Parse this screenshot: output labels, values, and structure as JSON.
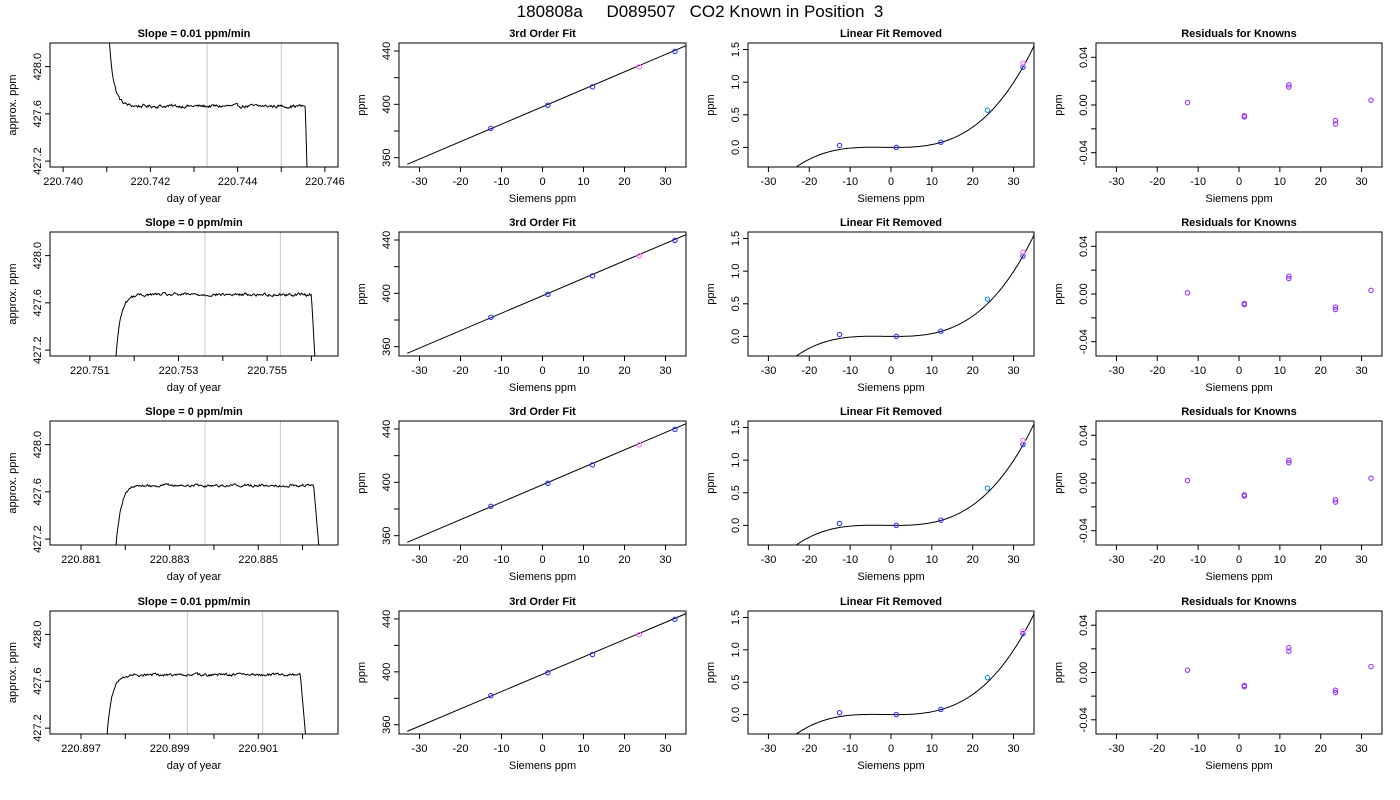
{
  "page": {
    "title": "180808a     D089507   CO2 Known in Position  3"
  },
  "chart_data": [
    {
      "type": "line",
      "row": 0,
      "panel": "trace",
      "title": "Slope =  0.01  ppm/min",
      "xlabel": "day of year",
      "ylabel": "approx. ppm",
      "xlim": [
        220.7397,
        220.7463
      ],
      "ylim": [
        427.15,
        428.2
      ],
      "xticks": [
        220.74,
        220.742,
        220.744,
        220.746
      ],
      "xtick_labels": [
        "220.740",
        "220.742",
        "220.744",
        "220.746"
      ],
      "xminor_ticks": [
        220.741,
        220.743,
        220.745
      ],
      "yticks": [
        427.2,
        427.6,
        428.0
      ],
      "ytick_labels": [
        "427.2",
        "427.6",
        "428.0"
      ],
      "vlines": [
        220.7433,
        220.745
      ],
      "trace": {
        "x_start": 220.741,
        "x_end": 220.7456,
        "level": 427.665,
        "noise": 0.014,
        "rise": "decay",
        "rise_from": 428.6,
        "rise_tau": 0.00011,
        "fall_start": 220.74555,
        "drop_to": 427.0
      }
    },
    {
      "type": "scatter",
      "row": 0,
      "panel": "fit",
      "title": "3rd Order Fit",
      "xlabel": "Siemens ppm",
      "ylabel": "ppm",
      "xlim": [
        -35,
        35
      ],
      "ylim": [
        353,
        446
      ],
      "xticks": [
        -30,
        -20,
        -10,
        0,
        10,
        20,
        30
      ],
      "xtick_labels": [
        "-30",
        "-20",
        "-10",
        "0",
        "10",
        "20",
        "30"
      ],
      "yticks": [
        360,
        400,
        440
      ],
      "ytick_labels": [
        "360",
        "400",
        "440"
      ],
      "yminor_ticks": [
        380,
        420
      ],
      "fit_line": [
        [
          -33,
          355
        ],
        [
          35,
          444
        ]
      ],
      "points": [
        {
          "x": -12.6,
          "y": 382.0
        },
        {
          "x": 1.3,
          "y": 399.3
        },
        {
          "x": 12.2,
          "y": 413.1
        },
        {
          "x": 23.6,
          "y": 428.1,
          "color": "#ff66ff"
        },
        {
          "x": 32.3,
          "y": 439.7
        }
      ]
    },
    {
      "type": "scatter",
      "row": 0,
      "panel": "linear",
      "title": "Linear Fit Removed",
      "xlabel": "Siemens ppm",
      "ylabel": "ppm",
      "xlim": [
        -35,
        35
      ],
      "ylim": [
        -0.3,
        1.6
      ],
      "xticks": [
        -30,
        -20,
        -10,
        0,
        10,
        20,
        30
      ],
      "xtick_labels": [
        "-30",
        "-20",
        "-10",
        "0",
        "10",
        "20",
        "30"
      ],
      "yticks": [
        0,
        0.5,
        1.0,
        1.5
      ],
      "ytick_labels": [
        "0.0",
        "0.5",
        "1.0",
        "1.5"
      ],
      "curve_x": [
        -33,
        35
      ],
      "points": [
        {
          "x": -12.6,
          "y": 0.03
        },
        {
          "x": 1.3,
          "y": 0.0
        },
        {
          "x": 12.2,
          "y": 0.08
        },
        {
          "x": 23.6,
          "y": 0.57,
          "color": "#1e90ff"
        },
        {
          "x": 32.3,
          "y": 1.23
        },
        {
          "x": 32.3,
          "y": 1.29,
          "color": "#ff66ff"
        }
      ]
    },
    {
      "type": "scatter",
      "row": 0,
      "panel": "resid",
      "title": "Residuals for Knowns",
      "xlabel": "Siemens ppm",
      "ylabel": "ppm",
      "xlim": [
        -35,
        35
      ],
      "ylim": [
        -0.052,
        0.052
      ],
      "xticks": [
        -30,
        -20,
        -10,
        0,
        10,
        20,
        30
      ],
      "xtick_labels": [
        "-30",
        "-20",
        "-10",
        "0",
        "10",
        "20",
        "30"
      ],
      "yticks": [
        -0.04,
        0.0,
        0.04
      ],
      "ytick_labels": [
        "-0.04",
        "0.00",
        "0.04"
      ],
      "yminor_ticks": [
        -0.02,
        0.02
      ],
      "points": [
        {
          "x": -12.6,
          "y": 0.002
        },
        {
          "x": 1.3,
          "y": -0.009
        },
        {
          "x": 1.3,
          "y": -0.01
        },
        {
          "x": 12.2,
          "y": 0.017
        },
        {
          "x": 12.2,
          "y": 0.015
        },
        {
          "x": 23.6,
          "y": -0.013
        },
        {
          "x": 23.6,
          "y": -0.016
        },
        {
          "x": 32.3,
          "y": 0.004
        }
      ]
    },
    {
      "type": "line",
      "row": 1,
      "panel": "trace",
      "title": "Slope =  0  ppm/min",
      "xlabel": "day of year",
      "ylabel": "approx. ppm",
      "xlim": [
        220.7501,
        220.7566
      ],
      "ylim": [
        427.15,
        428.2
      ],
      "xticks": [
        220.751,
        220.753,
        220.755
      ],
      "xtick_labels": [
        "220.751",
        "220.753",
        "220.755"
      ],
      "xminor_ticks": [
        220.752,
        220.754,
        220.756
      ],
      "yticks": [
        427.2,
        427.6,
        428.0
      ],
      "ytick_labels": [
        "427.2",
        "427.6",
        "428.0"
      ],
      "vlines": [
        220.7536,
        220.7553
      ],
      "trace": {
        "x_start": 220.7515,
        "x_end": 220.7561,
        "level": 427.67,
        "noise": 0.013,
        "rise": "grow",
        "rise_from": 426.5,
        "rise_tau": 0.00011,
        "fall_start": 220.756,
        "drop_to": 427.0
      }
    },
    {
      "type": "scatter",
      "row": 1,
      "panel": "fit",
      "title": "3rd Order Fit",
      "xlabel": "Siemens ppm",
      "ylabel": "ppm",
      "xlim": [
        -35,
        35
      ],
      "ylim": [
        353,
        446
      ],
      "xticks": [
        -30,
        -20,
        -10,
        0,
        10,
        20,
        30
      ],
      "xtick_labels": [
        "-30",
        "-20",
        "-10",
        "0",
        "10",
        "20",
        "30"
      ],
      "yticks": [
        360,
        400,
        440
      ],
      "ytick_labels": [
        "360",
        "400",
        "440"
      ],
      "yminor_ticks": [
        380,
        420
      ],
      "fit_line": [
        [
          -33,
          355
        ],
        [
          35,
          444
        ]
      ],
      "points": [
        {
          "x": -12.6,
          "y": 382.0
        },
        {
          "x": 1.3,
          "y": 399.3
        },
        {
          "x": 12.2,
          "y": 413.1
        },
        {
          "x": 23.6,
          "y": 428.1,
          "color": "#ff66ff"
        },
        {
          "x": 32.3,
          "y": 439.7
        }
      ]
    },
    {
      "type": "scatter",
      "row": 1,
      "panel": "linear",
      "title": "Linear Fit Removed",
      "xlabel": "Siemens ppm",
      "ylabel": "ppm",
      "xlim": [
        -35,
        35
      ],
      "ylim": [
        -0.3,
        1.6
      ],
      "xticks": [
        -30,
        -20,
        -10,
        0,
        10,
        20,
        30
      ],
      "xtick_labels": [
        "-30",
        "-20",
        "-10",
        "0",
        "10",
        "20",
        "30"
      ],
      "yticks": [
        0,
        0.5,
        1.0,
        1.5
      ],
      "ytick_labels": [
        "0.0",
        "0.5",
        "1.0",
        "1.5"
      ],
      "curve_x": [
        -33,
        35
      ],
      "points": [
        {
          "x": -12.6,
          "y": 0.03
        },
        {
          "x": 1.3,
          "y": 0.0
        },
        {
          "x": 12.2,
          "y": 0.08
        },
        {
          "x": 23.6,
          "y": 0.57,
          "color": "#1e90ff"
        },
        {
          "x": 32.3,
          "y": 1.23
        },
        {
          "x": 32.3,
          "y": 1.29,
          "color": "#ff66ff"
        }
      ]
    },
    {
      "type": "scatter",
      "row": 1,
      "panel": "resid",
      "title": "Residuals for Knowns",
      "xlabel": "Siemens ppm",
      "ylabel": "ppm",
      "xlim": [
        -35,
        35
      ],
      "ylim": [
        -0.052,
        0.052
      ],
      "xticks": [
        -30,
        -20,
        -10,
        0,
        10,
        20,
        30
      ],
      "xtick_labels": [
        "-30",
        "-20",
        "-10",
        "0",
        "10",
        "20",
        "30"
      ],
      "yticks": [
        -0.04,
        0.0,
        0.04
      ],
      "ytick_labels": [
        "-0.04",
        "0.00",
        "0.04"
      ],
      "yminor_ticks": [
        -0.02,
        0.02
      ],
      "points": [
        {
          "x": -12.6,
          "y": 0.001
        },
        {
          "x": 1.3,
          "y": -0.008
        },
        {
          "x": 1.3,
          "y": -0.009
        },
        {
          "x": 12.2,
          "y": 0.015
        },
        {
          "x": 12.2,
          "y": 0.013
        },
        {
          "x": 23.6,
          "y": -0.011
        },
        {
          "x": 23.6,
          "y": -0.013
        },
        {
          "x": 32.3,
          "y": 0.003
        }
      ]
    },
    {
      "type": "line",
      "row": 2,
      "panel": "trace",
      "title": "Slope =  0  ppm/min",
      "xlabel": "day of year",
      "ylabel": "approx. ppm",
      "xlim": [
        220.8803,
        220.8868
      ],
      "ylim": [
        427.15,
        428.2
      ],
      "xticks": [
        220.881,
        220.883,
        220.885
      ],
      "xtick_labels": [
        "220.881",
        "220.883",
        "220.885"
      ],
      "xminor_ticks": [
        220.882,
        220.884,
        220.886
      ],
      "yticks": [
        427.2,
        427.6,
        428.0
      ],
      "ytick_labels": [
        "427.2",
        "427.6",
        "428.0"
      ],
      "vlines": [
        220.8838,
        220.8855
      ],
      "trace": {
        "x_start": 220.8817,
        "x_end": 220.8864,
        "level": 427.655,
        "noise": 0.012,
        "rise": "grow",
        "rise_from": 426.5,
        "rise_tau": 0.00011,
        "fall_start": 220.88625,
        "drop_to": 427.0
      }
    },
    {
      "type": "scatter",
      "row": 2,
      "panel": "fit",
      "title": "3rd Order Fit",
      "xlabel": "Siemens ppm",
      "ylabel": "ppm",
      "xlim": [
        -35,
        35
      ],
      "ylim": [
        353,
        446
      ],
      "xticks": [
        -30,
        -20,
        -10,
        0,
        10,
        20,
        30
      ],
      "xtick_labels": [
        "-30",
        "-20",
        "-10",
        "0",
        "10",
        "20",
        "30"
      ],
      "yticks": [
        360,
        400,
        440
      ],
      "ytick_labels": [
        "360",
        "400",
        "440"
      ],
      "yminor_ticks": [
        380,
        420
      ],
      "fit_line": [
        [
          -33,
          355
        ],
        [
          35,
          444
        ]
      ],
      "points": [
        {
          "x": -12.6,
          "y": 382.0
        },
        {
          "x": 1.3,
          "y": 399.3
        },
        {
          "x": 12.2,
          "y": 413.1
        },
        {
          "x": 23.6,
          "y": 428.1,
          "color": "#ff66ff"
        },
        {
          "x": 32.3,
          "y": 439.7
        }
      ]
    },
    {
      "type": "scatter",
      "row": 2,
      "panel": "linear",
      "title": "Linear Fit Removed",
      "xlabel": "Siemens ppm",
      "ylabel": "ppm",
      "xlim": [
        -35,
        35
      ],
      "ylim": [
        -0.3,
        1.6
      ],
      "xticks": [
        -30,
        -20,
        -10,
        0,
        10,
        20,
        30
      ],
      "xtick_labels": [
        "-30",
        "-20",
        "-10",
        "0",
        "10",
        "20",
        "30"
      ],
      "yticks": [
        0,
        0.5,
        1.0,
        1.5
      ],
      "ytick_labels": [
        "0.0",
        "0.5",
        "1.0",
        "1.5"
      ],
      "curve_x": [
        -33,
        35
      ],
      "points": [
        {
          "x": -12.6,
          "y": 0.03
        },
        {
          "x": 1.3,
          "y": 0.0
        },
        {
          "x": 12.2,
          "y": 0.08
        },
        {
          "x": 23.6,
          "y": 0.57,
          "color": "#1e90ff"
        },
        {
          "x": 32.3,
          "y": 1.24
        },
        {
          "x": 32.3,
          "y": 1.3,
          "color": "#ff66ff"
        }
      ]
    },
    {
      "type": "scatter",
      "row": 2,
      "panel": "resid",
      "title": "Residuals for Knowns",
      "xlabel": "Siemens ppm",
      "ylabel": "ppm",
      "xlim": [
        -35,
        35
      ],
      "ylim": [
        -0.052,
        0.052
      ],
      "xticks": [
        -30,
        -20,
        -10,
        0,
        10,
        20,
        30
      ],
      "xtick_labels": [
        "-30",
        "-20",
        "-10",
        "0",
        "10",
        "20",
        "30"
      ],
      "yticks": [
        -0.04,
        0.0,
        0.04
      ],
      "ytick_labels": [
        "-0.04",
        "0.00",
        "0.04"
      ],
      "yminor_ticks": [
        -0.02,
        0.02
      ],
      "points": [
        {
          "x": -12.6,
          "y": 0.002
        },
        {
          "x": 1.3,
          "y": -0.01
        },
        {
          "x": 1.3,
          "y": -0.011
        },
        {
          "x": 12.2,
          "y": 0.019
        },
        {
          "x": 12.2,
          "y": 0.017
        },
        {
          "x": 23.6,
          "y": -0.014
        },
        {
          "x": 23.6,
          "y": -0.016
        },
        {
          "x": 32.3,
          "y": 0.004
        }
      ]
    },
    {
      "type": "line",
      "row": 3,
      "panel": "trace",
      "title": "Slope =  0.01  ppm/min",
      "xlabel": "day of year",
      "ylabel": "approx. ppm",
      "xlim": [
        220.8963,
        220.9028
      ],
      "ylim": [
        427.15,
        428.2
      ],
      "xticks": [
        220.897,
        220.899,
        220.901
      ],
      "xtick_labels": [
        "220.897",
        "220.899",
        "220.901"
      ],
      "xminor_ticks": [
        220.898,
        220.9,
        220.902
      ],
      "yticks": [
        427.2,
        427.6,
        428.0
      ],
      "ytick_labels": [
        "427.2",
        "427.6",
        "428.0"
      ],
      "vlines": [
        220.8994,
        220.9011
      ],
      "trace": {
        "x_start": 220.8975,
        "x_end": 220.9021,
        "level": 427.655,
        "noise": 0.012,
        "rise": "grow",
        "rise_from": 426.5,
        "rise_tau": 0.00011,
        "fall_start": 220.90195,
        "drop_to": 427.0
      }
    },
    {
      "type": "scatter",
      "row": 3,
      "panel": "fit",
      "title": "3rd Order Fit",
      "xlabel": "Siemens ppm",
      "ylabel": "ppm",
      "xlim": [
        -35,
        35
      ],
      "ylim": [
        353,
        446
      ],
      "xticks": [
        -30,
        -20,
        -10,
        0,
        10,
        20,
        30
      ],
      "xtick_labels": [
        "-30",
        "-20",
        "-10",
        "0",
        "10",
        "20",
        "30"
      ],
      "yticks": [
        360,
        400,
        440
      ],
      "ytick_labels": [
        "360",
        "400",
        "440"
      ],
      "yminor_ticks": [
        380,
        420
      ],
      "fit_line": [
        [
          -33,
          355
        ],
        [
          35,
          444
        ]
      ],
      "points": [
        {
          "x": -12.6,
          "y": 382.0
        },
        {
          "x": 1.3,
          "y": 399.3
        },
        {
          "x": 12.2,
          "y": 413.1
        },
        {
          "x": 23.6,
          "y": 428.1,
          "color": "#ff66ff"
        },
        {
          "x": 32.3,
          "y": 439.7
        }
      ]
    },
    {
      "type": "scatter",
      "row": 3,
      "panel": "linear",
      "title": "Linear Fit Removed",
      "xlabel": "Siemens ppm",
      "ylabel": "ppm",
      "xlim": [
        -35,
        35
      ],
      "ylim": [
        -0.3,
        1.6
      ],
      "xticks": [
        -30,
        -20,
        -10,
        0,
        10,
        20,
        30
      ],
      "xtick_labels": [
        "-30",
        "-20",
        "-10",
        "0",
        "10",
        "20",
        "30"
      ],
      "yticks": [
        0,
        0.5,
        1.0,
        1.5
      ],
      "ytick_labels": [
        "0.0",
        "0.5",
        "1.0",
        "1.5"
      ],
      "curve_x": [
        -33,
        35
      ],
      "points": [
        {
          "x": -12.6,
          "y": 0.03
        },
        {
          "x": 1.3,
          "y": 0.0
        },
        {
          "x": 12.2,
          "y": 0.08
        },
        {
          "x": 23.6,
          "y": 0.57,
          "color": "#1e90ff"
        },
        {
          "x": 32.3,
          "y": 1.25
        },
        {
          "x": 32.3,
          "y": 1.29,
          "color": "#ff66ff"
        }
      ]
    },
    {
      "type": "scatter",
      "row": 3,
      "panel": "resid",
      "title": "Residuals for Knowns",
      "xlabel": "Siemens ppm",
      "ylabel": "ppm",
      "xlim": [
        -35,
        35
      ],
      "ylim": [
        -0.052,
        0.052
      ],
      "xticks": [
        -30,
        -20,
        -10,
        0,
        10,
        20,
        30
      ],
      "xtick_labels": [
        "-30",
        "-20",
        "-10",
        "0",
        "10",
        "20",
        "30"
      ],
      "yticks": [
        -0.04,
        0.0,
        0.04
      ],
      "ytick_labels": [
        "-0.04",
        "0.00",
        "0.04"
      ],
      "yminor_ticks": [
        -0.02,
        0.02
      ],
      "points": [
        {
          "x": -12.6,
          "y": 0.002
        },
        {
          "x": 1.3,
          "y": -0.011
        },
        {
          "x": 1.3,
          "y": -0.012
        },
        {
          "x": 12.2,
          "y": 0.021
        },
        {
          "x": 12.2,
          "y": 0.018
        },
        {
          "x": 23.6,
          "y": -0.015
        },
        {
          "x": 23.6,
          "y": -0.017
        },
        {
          "x": 32.3,
          "y": 0.005
        }
      ]
    }
  ],
  "style": {
    "point_color": "#3333ff",
    "point_color_alt": "#9933ff",
    "highlight_pink": "#ff66ff",
    "highlight_blue": "#1e90ff",
    "vline_color": "#c8c8c8",
    "line_color": "#000000"
  }
}
